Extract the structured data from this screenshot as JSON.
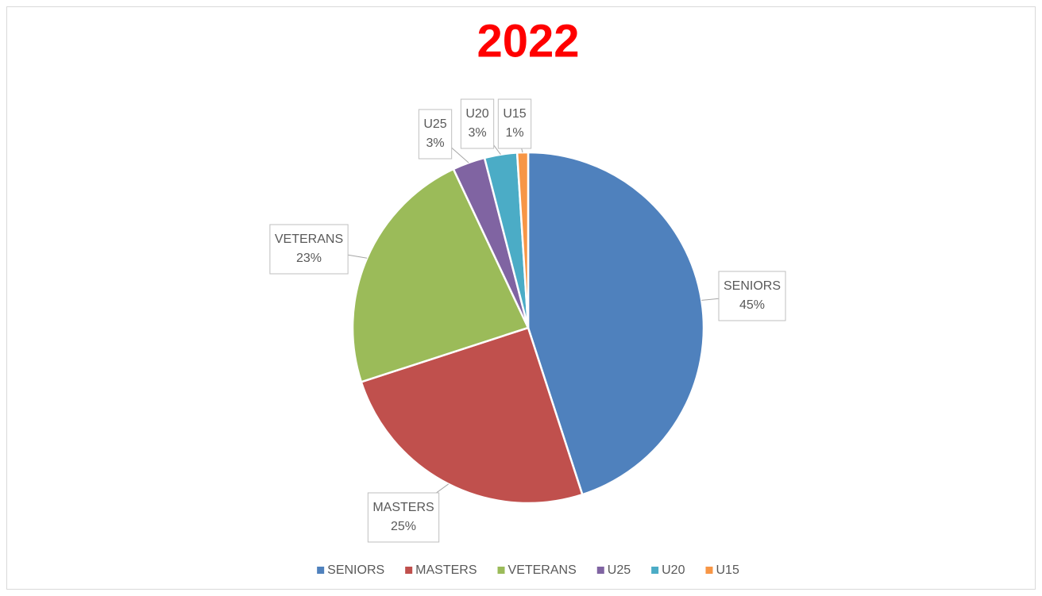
{
  "chart_data": {
    "type": "pie",
    "title": "2022",
    "categories": [
      "SENIORS",
      "MASTERS",
      "VETERANS",
      "U25",
      "U20",
      "U15"
    ],
    "values": [
      45,
      25,
      23,
      3,
      3,
      1
    ],
    "value_labels": [
      "45%",
      "25%",
      "23%",
      "3%",
      "3%",
      "1%"
    ],
    "colors": [
      "#4f81bd",
      "#c0504d",
      "#9bbb59",
      "#8064a2",
      "#4bacc6",
      "#f79646"
    ],
    "legend": "bottom"
  }
}
